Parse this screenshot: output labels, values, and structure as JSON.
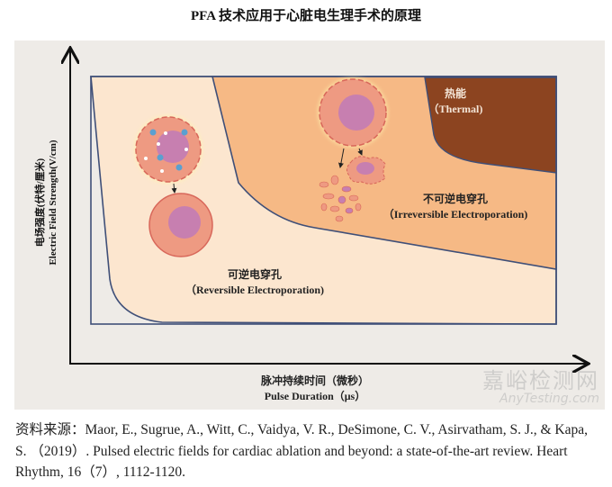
{
  "title": "PFA 技术应用于心脏电生理手术的原理",
  "y_axis": {
    "label_zh": "电场强度(伏特/厘米)",
    "label_en": "Electric Field Strength(V/cm)"
  },
  "x_axis": {
    "label_zh": "脉冲持续时间（微秒）",
    "label_en": "Pulse Duration（μs）"
  },
  "regions": [
    {
      "id": "reversible",
      "label_zh": "可逆电穿孔",
      "label_en": "（Reversible Electroporation)",
      "color": "#fce6cf"
    },
    {
      "id": "irreversible",
      "label_zh": "不可逆电穿孔",
      "label_en": "（Irreversible Electroporation)",
      "color": "#f6b985"
    },
    {
      "id": "thermal",
      "label_zh": "热能",
      "label_en": "（Thermal)",
      "color": "#8c4420"
    }
  ],
  "citation": {
    "prefix": "资料来源：",
    "text": "Maor, E., Sugrue, A., Witt, C., Vaidya, V. R., DeSimone, C. V., Asirvatham, S. J., & Kapa, S. （2019）. Pulsed electric fields for cardiac ablation and beyond: a state-of-the-art review. Heart Rhythm, 16（7）, 1112-1120."
  },
  "watermark": {
    "zh": "嘉峪检测网",
    "en": "AnyTesting.com"
  }
}
